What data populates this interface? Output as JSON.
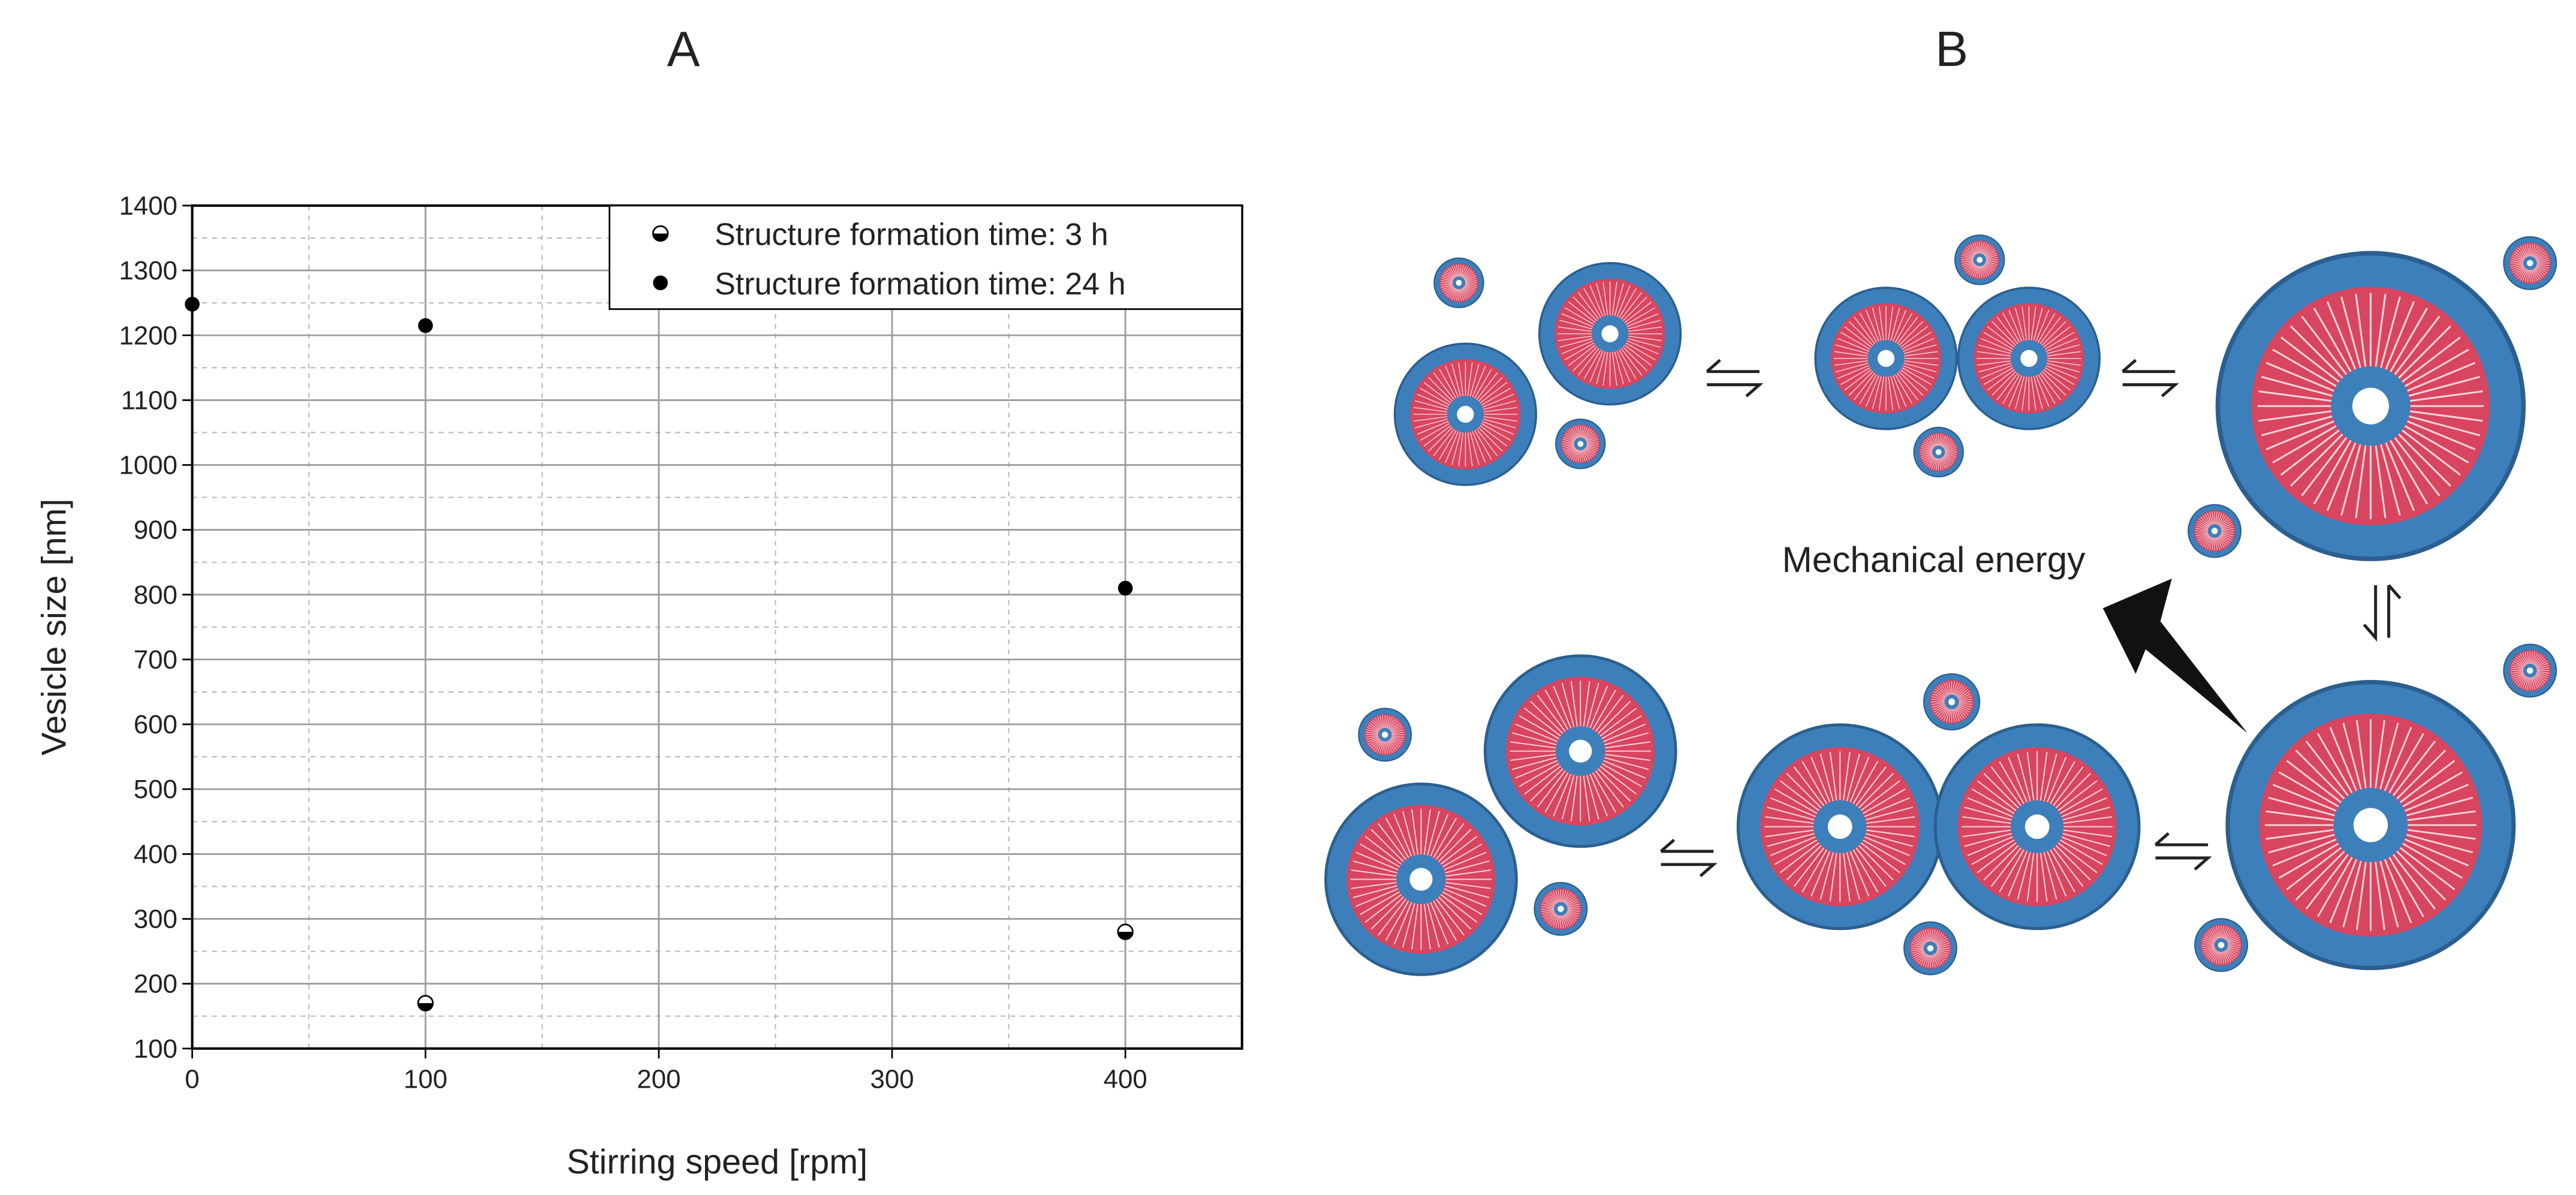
{
  "panel_labels": [
    "A",
    "B"
  ],
  "chart_data": {
    "type": "scatter",
    "x_label": "Stirring speed [rpm]",
    "y_label": "Vesicle size [nm]",
    "xlim": [
      0,
      450
    ],
    "xticks": [
      0,
      100,
      200,
      300,
      400
    ],
    "ylim": [
      100,
      1400
    ],
    "yticks": [
      100,
      200,
      300,
      400,
      500,
      600,
      700,
      800,
      900,
      1000,
      1100,
      1200,
      1300,
      1400
    ],
    "grid": true,
    "minor_grid": true,
    "legend": "upper right",
    "series": [
      {
        "name": "Structure formation time: 3 h",
        "color": "#000000",
        "marker": "half-filled",
        "x": [
          100,
          400
        ],
        "values": [
          170,
          280
        ]
      },
      {
        "name": "Structure formation time: 24 h",
        "color": "#000000",
        "marker": "filled",
        "x": [
          0,
          100,
          400
        ],
        "values": [
          1248,
          1215,
          810
        ]
      }
    ]
  },
  "diagram": {
    "label": "Mechanical energy"
  }
}
